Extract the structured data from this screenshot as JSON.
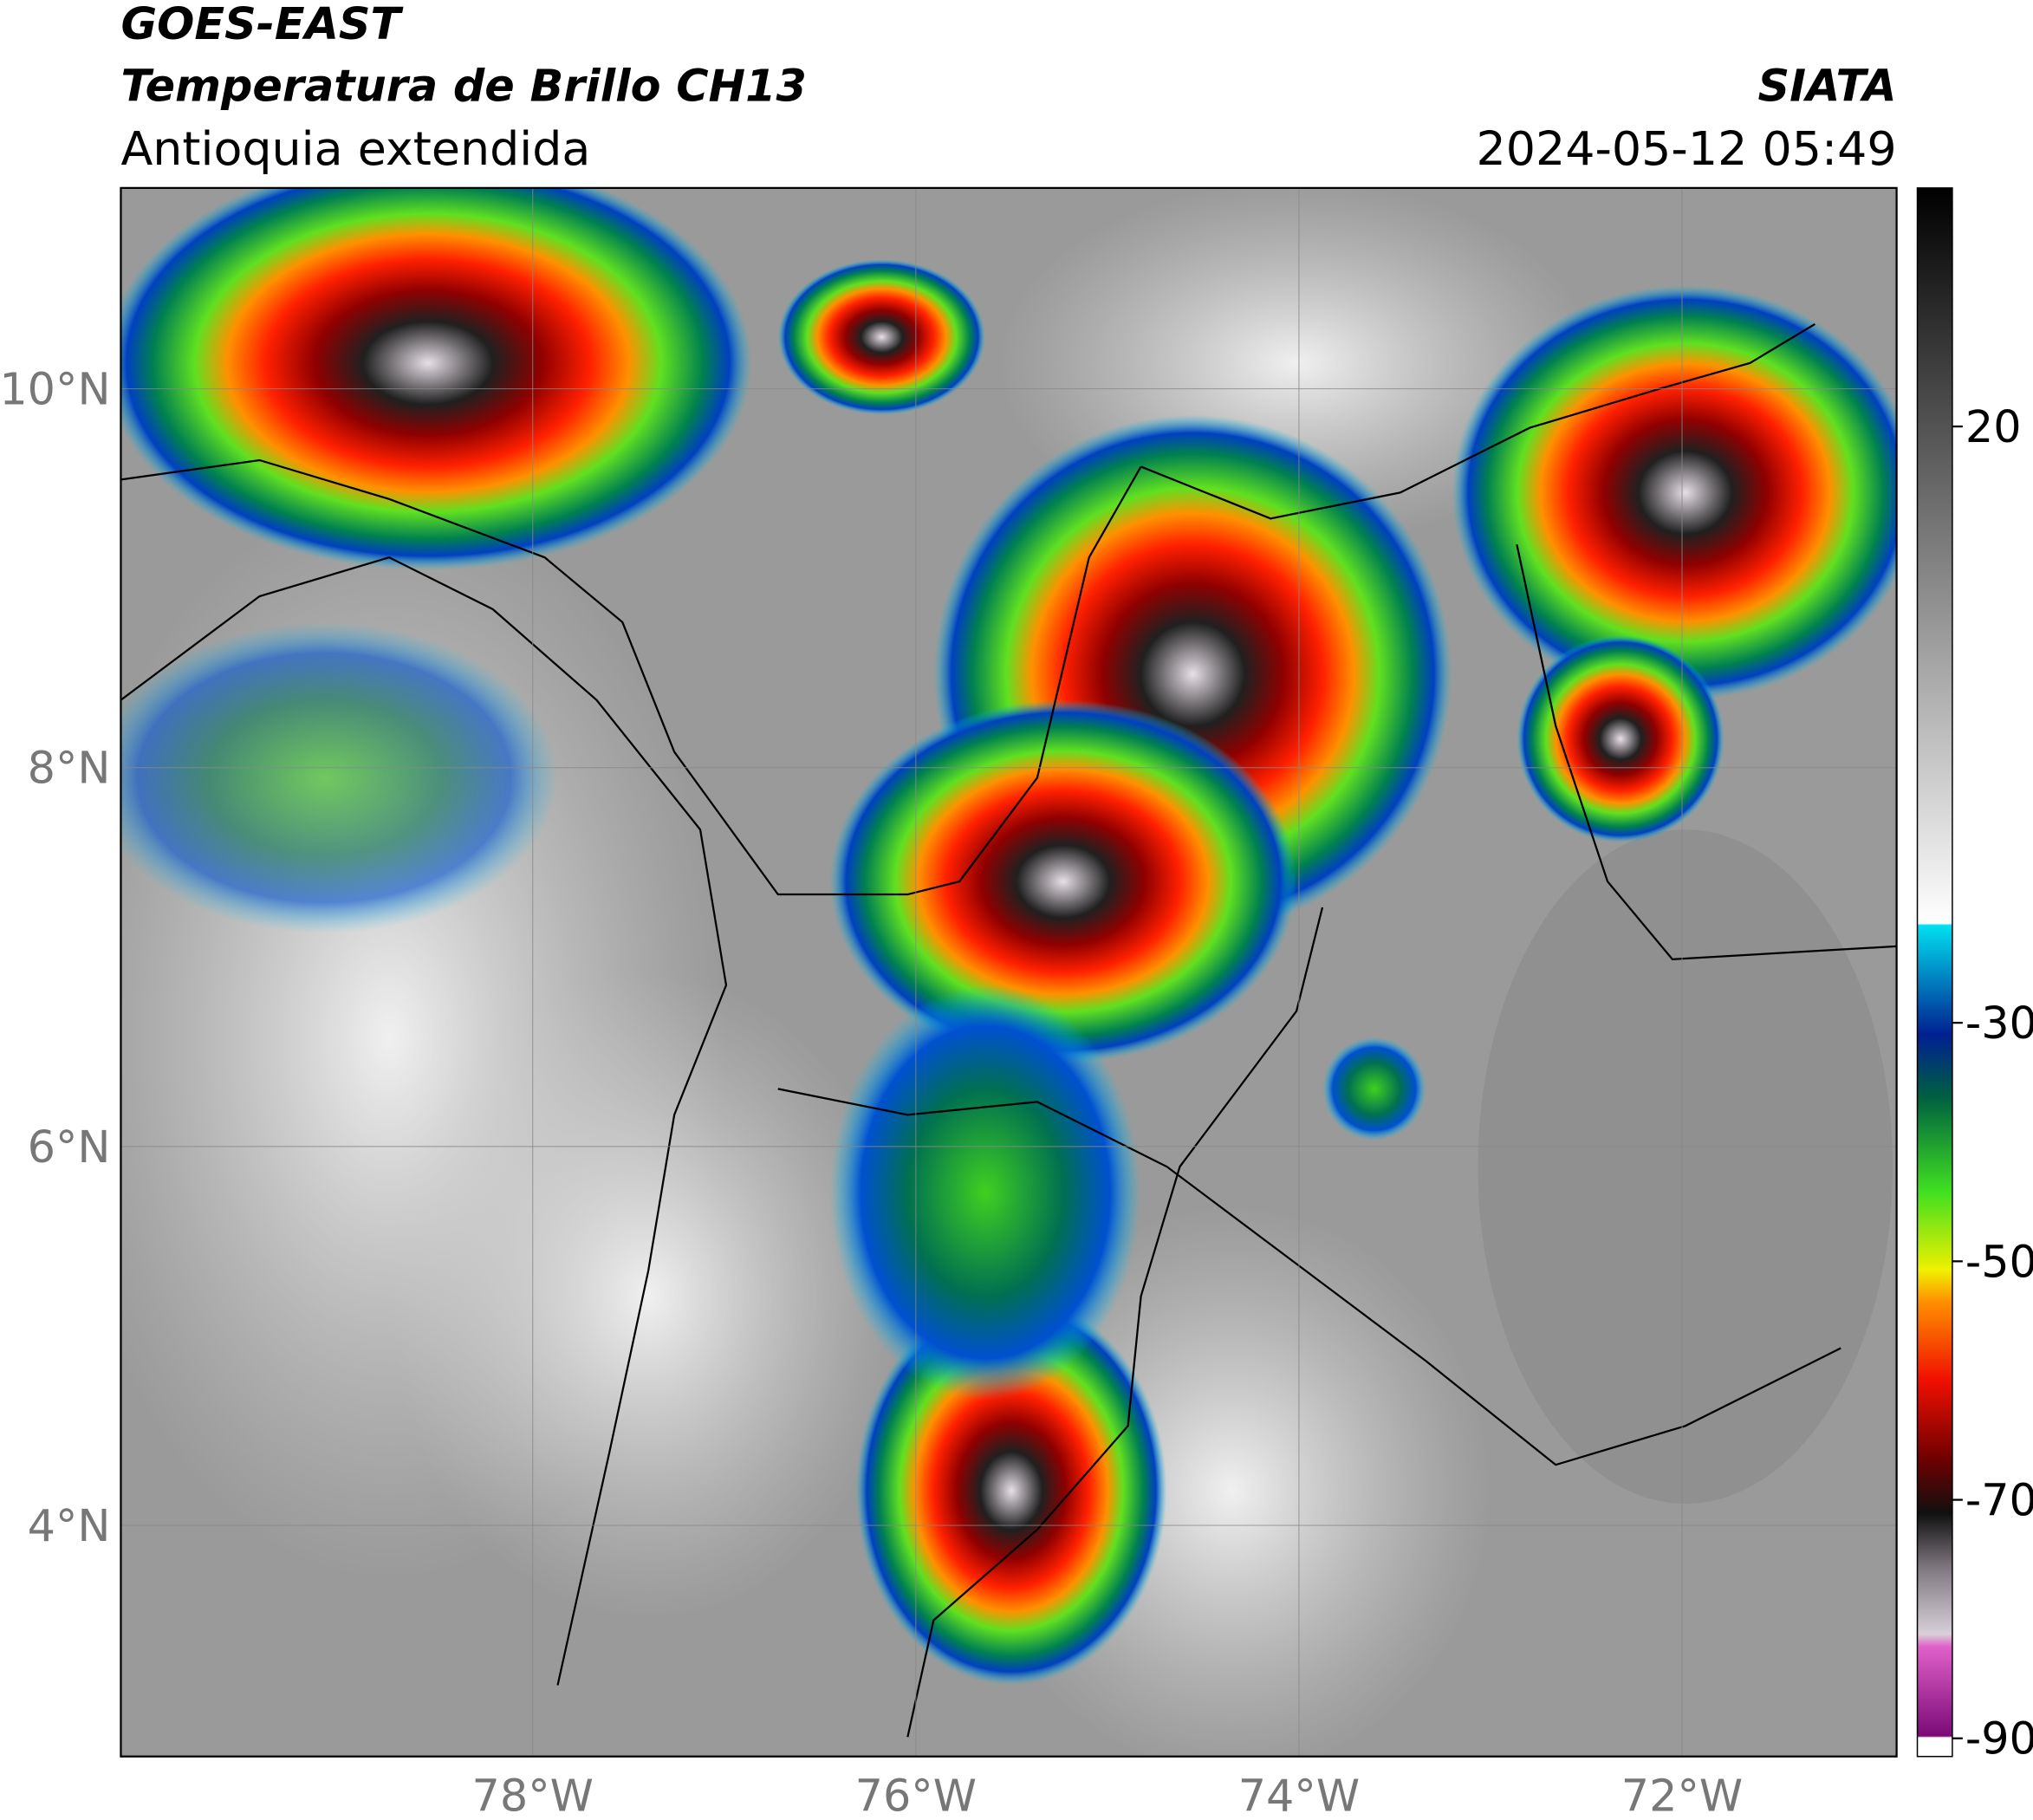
{
  "header": {
    "satellite": "GOES-EAST",
    "product": "Temperatura de Brillo CH13",
    "region": "Antioquia extendida",
    "agency": "SIATA",
    "datetime": "2024-05-12 05:49"
  },
  "map": {
    "xlim": [
      -80.15,
      -70.88
    ],
    "ylim": [
      2.78,
      11.06
    ],
    "xticks": [
      {
        "value": -78,
        "label": "78°W"
      },
      {
        "value": -76,
        "label": "76°W"
      },
      {
        "value": -74,
        "label": "74°W"
      },
      {
        "value": -72,
        "label": "72°W"
      }
    ],
    "yticks": [
      {
        "value": 4,
        "label": "4°N"
      },
      {
        "value": 6,
        "label": "6°N"
      },
      {
        "value": 8,
        "label": "8°N"
      },
      {
        "value": 10,
        "label": "10°N"
      }
    ]
  },
  "colorbar": {
    "lim": [
      -90,
      40
    ],
    "ticks": [
      -90,
      -70,
      -50,
      -30,
      20
    ]
  }
}
